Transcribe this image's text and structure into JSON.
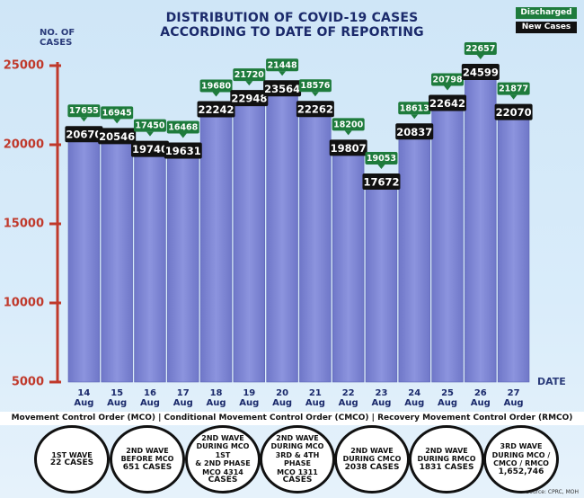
{
  "chart_data": {
    "type": "bar",
    "title": "DISTRIBUTION OF COVID-19 CASES ACCORDING TO DATE OF REPORTING",
    "ylabel": "NO. OF CASES",
    "xlabel": "DATE",
    "categories": [
      "14 Aug",
      "15 Aug",
      "16 Aug",
      "17 Aug",
      "18 Aug",
      "19 Aug",
      "20 Aug",
      "21 Aug",
      "22 Aug",
      "23 Aug",
      "24 Aug",
      "25 Aug",
      "26 Aug",
      "27 Aug"
    ],
    "series": [
      {
        "name": "New Cases",
        "color": "#111111",
        "values": [
          20670,
          20546,
          19740,
          19631,
          22242,
          22948,
          23564,
          22262,
          19807,
          17672,
          20837,
          22642,
          24599,
          22070
        ]
      },
      {
        "name": "Discharged",
        "color": "#1e7b3c",
        "values": [
          17655,
          16945,
          17450,
          16468,
          19680,
          21720,
          21448,
          18576,
          18200,
          19053,
          18613,
          20798,
          22657,
          21877
        ]
      }
    ],
    "ylim": [
      5000,
      25000
    ],
    "yticks": [
      5000,
      10000,
      15000,
      20000,
      25000
    ],
    "bar_color": "#8c94de",
    "axis_color": "#c0392b"
  },
  "footer": {
    "legend": "Movement Control Order (MCO) | Conditional Movement Control Order (CMCO) | Recovery Movement Control Order (RMCO)",
    "waves": [
      [
        "1ST WAVE",
        "22 CASES"
      ],
      [
        "2ND WAVE",
        "BEFORE MCO",
        "651 CASES"
      ],
      [
        "2ND WAVE",
        "DURING MCO 1ST",
        "& 2ND PHASE",
        "MCO 4314",
        "CASES"
      ],
      [
        "2ND WAVE",
        "DURING MCO",
        "3RD & 4TH PHASE",
        "MCO 1311",
        "CASES"
      ],
      [
        "2ND WAVE",
        "DURING CMCO",
        "2038 CASES"
      ],
      [
        "2ND WAVE",
        "DURING RMCO",
        "1831 CASES"
      ],
      [
        "3RD WAVE",
        "DURING MCO /",
        "CMCO / RMCO",
        "1,652,746"
      ]
    ],
    "source": "Source: CPRC, MOH"
  }
}
